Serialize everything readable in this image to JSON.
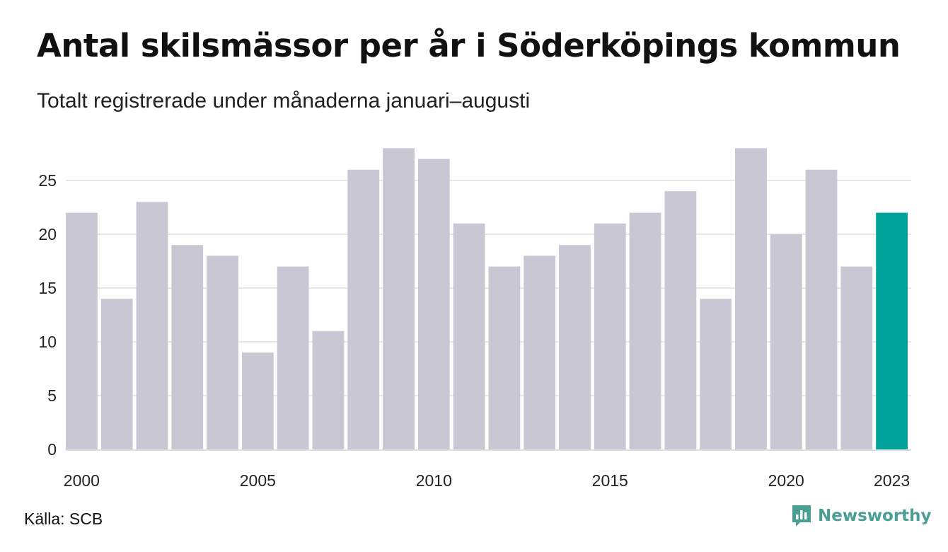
{
  "title": "Antal skilsmässor per år i Söderköpings kommun",
  "subtitle": "Totalt registrerade under månaderna januari–augusti",
  "source": "Källa: SCB",
  "brand": {
    "name": "Newsworthy",
    "icon": "bar-chart-speech-bubble-icon",
    "color": "#4a9e93"
  },
  "chart_data": {
    "type": "bar",
    "categories": [
      "2000",
      "2001",
      "2002",
      "2003",
      "2004",
      "2005",
      "2006",
      "2007",
      "2008",
      "2009",
      "2010",
      "2011",
      "2012",
      "2013",
      "2014",
      "2015",
      "2016",
      "2017",
      "2018",
      "2019",
      "2020",
      "2021",
      "2022",
      "2023"
    ],
    "values": [
      22,
      14,
      23,
      19,
      18,
      9,
      17,
      11,
      26,
      28,
      27,
      21,
      17,
      18,
      19,
      21,
      22,
      24,
      14,
      28,
      20,
      26,
      17,
      22
    ],
    "x_tick_labels": [
      "2000",
      "2005",
      "2010",
      "2015",
      "2020",
      "2023"
    ],
    "y_ticks": [
      0,
      5,
      10,
      15,
      20,
      25
    ],
    "ylim": [
      0,
      28
    ],
    "grid": true,
    "colors": {
      "default": "#c8c7d3",
      "highlight": "#00a39a",
      "grid": "#e6e6e6",
      "axis": "#dddddd"
    },
    "highlight_category": "2023"
  }
}
